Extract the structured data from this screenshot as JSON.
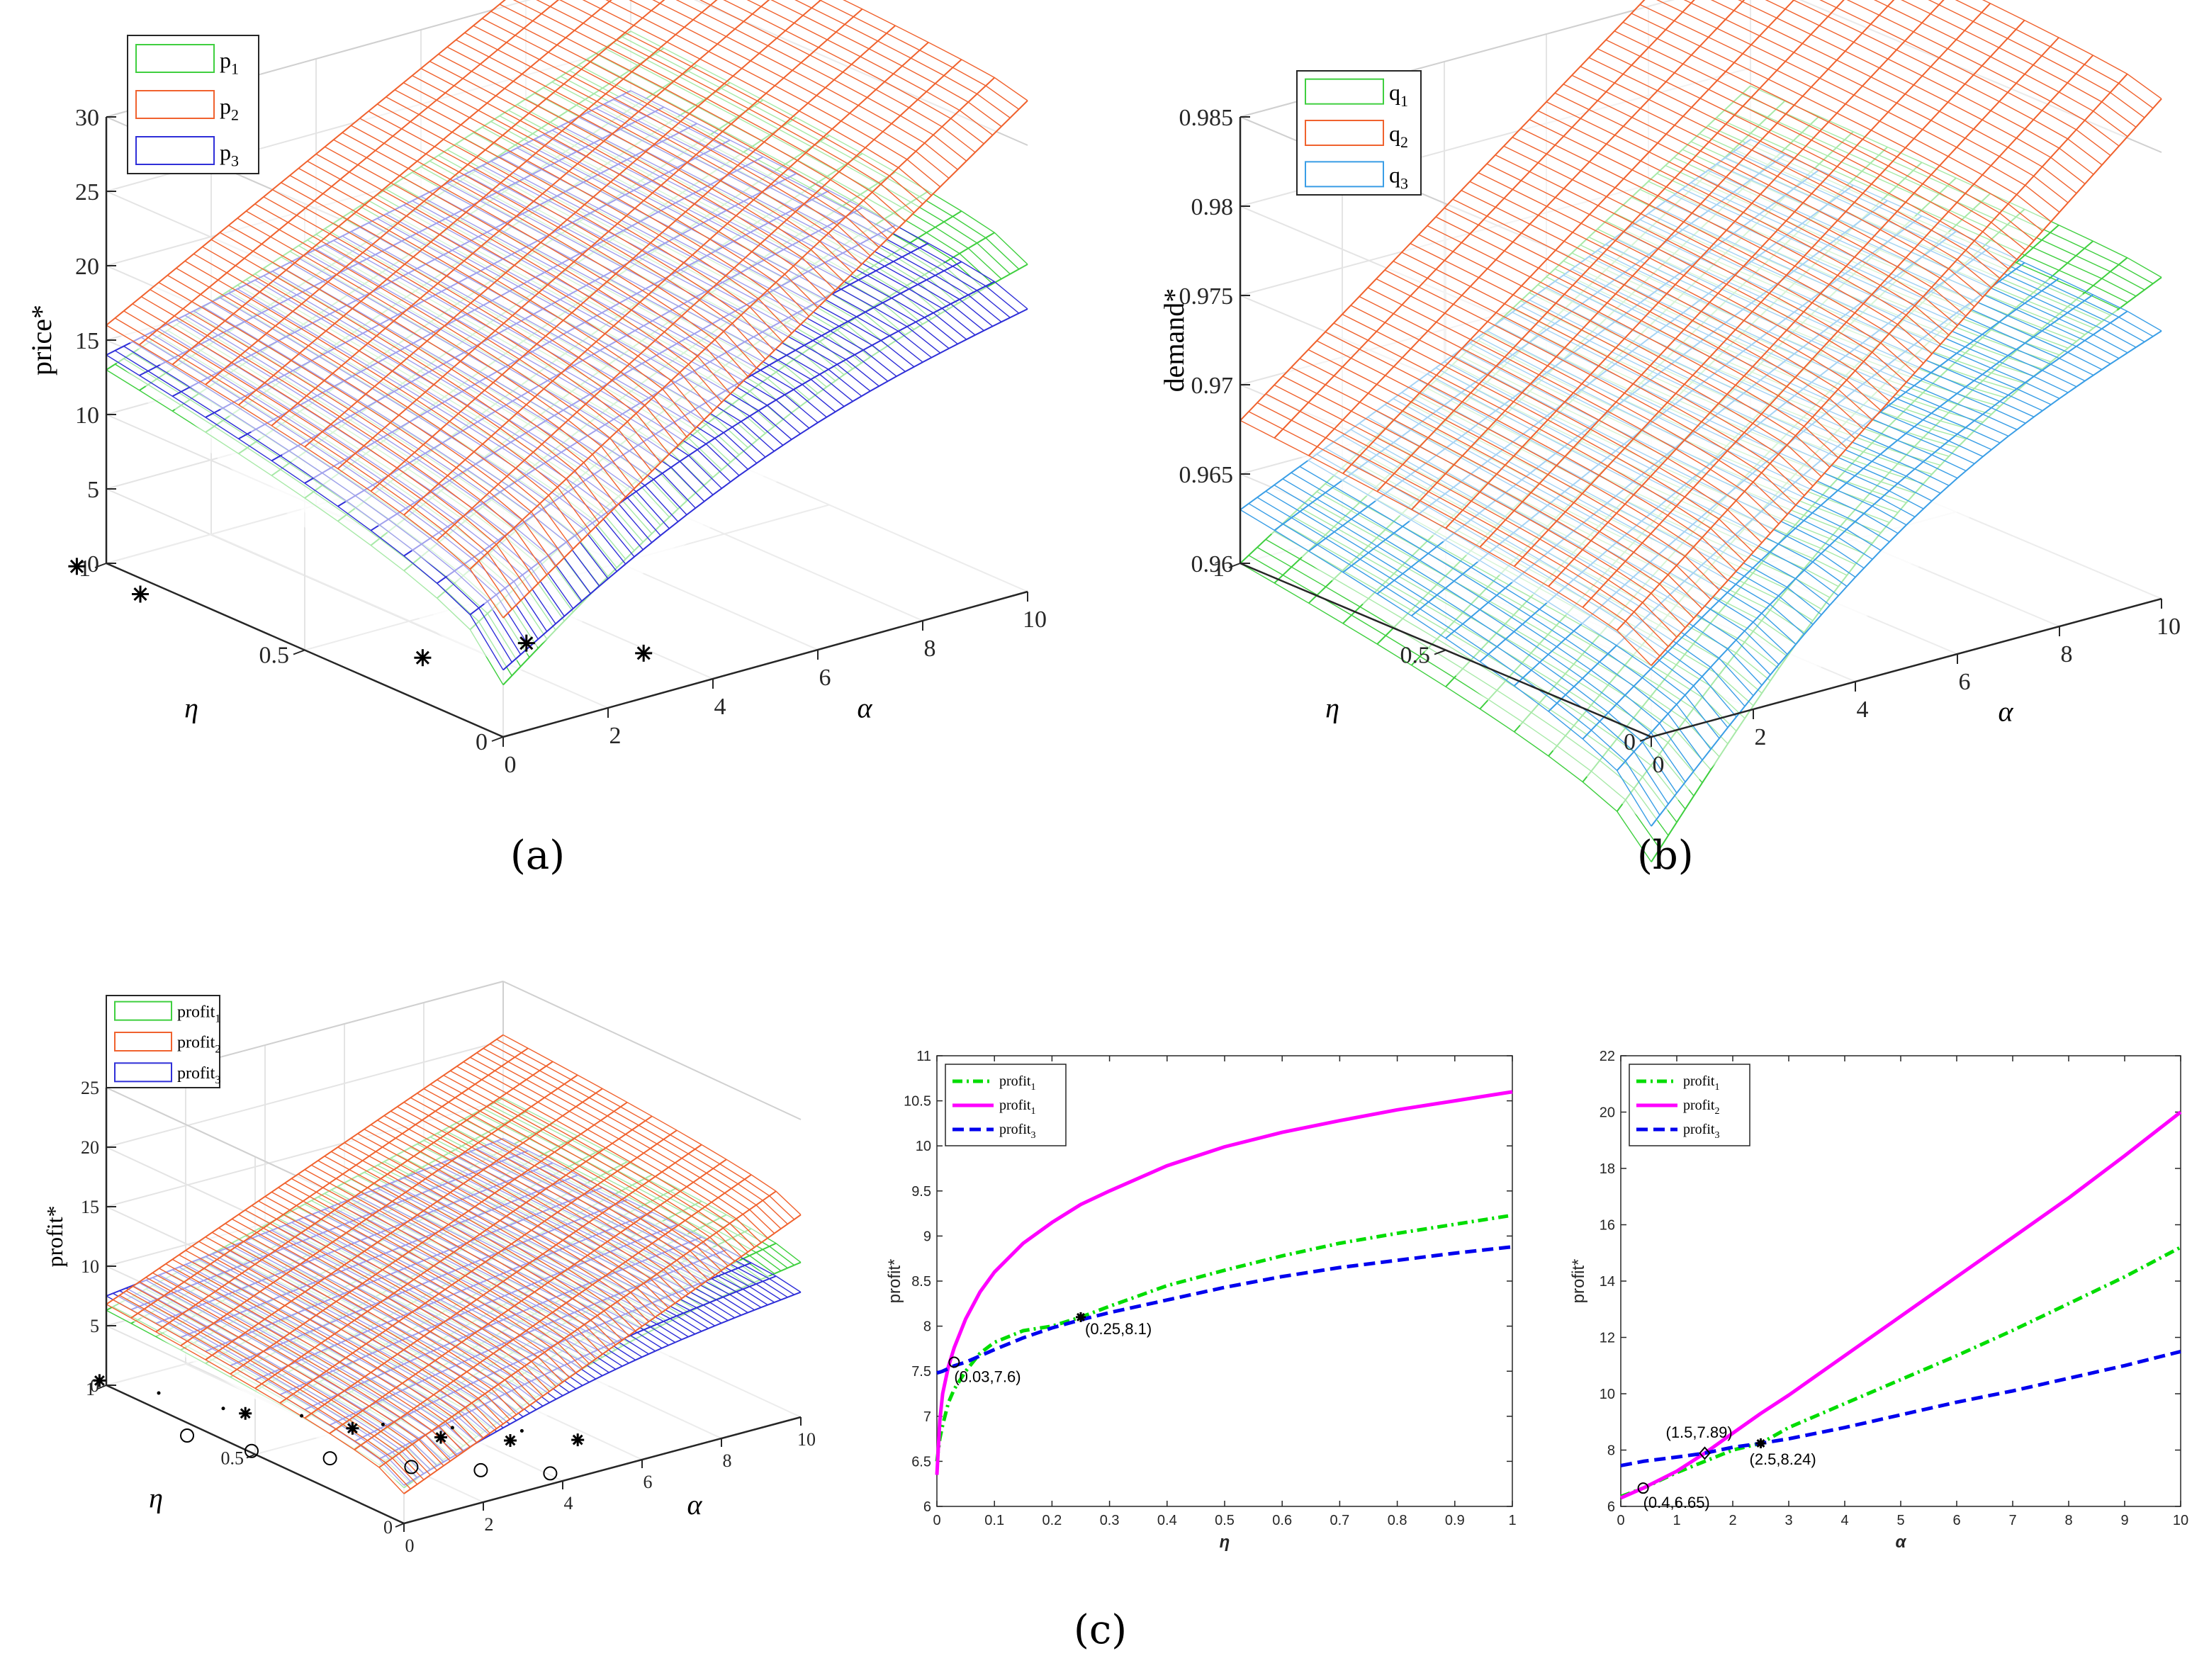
{
  "figure_labels": {
    "a": "(a)",
    "b": "(b)",
    "c": "(c)"
  },
  "colors": {
    "s1": "#3fcf3f",
    "s2": "#f0622e",
    "s3": "#2f2fd8",
    "s3b": "#3a9ee6",
    "profit1": "#00dd00",
    "profit2": "#ff00ff",
    "profit3": "#0000ee"
  },
  "chart_data": [
    {
      "type": "surface3d",
      "panel": "a",
      "ylabel": "price*",
      "xlabel": "α",
      "depth_label": "η",
      "zlim": [
        0,
        30
      ],
      "zticks": [
        "0",
        "5",
        "10",
        "15",
        "20",
        "25",
        "30"
      ],
      "alpha_ticks": [
        "0",
        "2",
        "4",
        "6",
        "8",
        "10"
      ],
      "eta_ticks": [
        "0",
        "0.5",
        "1"
      ],
      "legend": [
        "p",
        "p",
        "p"
      ],
      "legend_sub": [
        "1",
        "2",
        "3"
      ],
      "series": [
        {
          "name": "p1",
          "corners": {
            "a0e0": 3.5,
            "a10e0": 22,
            "a0e1": 13,
            "a10e1": 26
          }
        },
        {
          "name": "p2",
          "corners": {
            "a0e0": 8,
            "a10e0": 33,
            "a0e1": 16,
            "a10e1": 35
          }
        },
        {
          "name": "p3",
          "corners": {
            "a0e0": 4.5,
            "a10e0": 19,
            "a0e1": 14,
            "a10e1": 22
          }
        }
      ],
      "markers": "asterisks"
    },
    {
      "type": "surface3d",
      "panel": "b",
      "ylabel": "demand*",
      "xlabel": "α",
      "depth_label": "η",
      "zlim": [
        0.96,
        0.985
      ],
      "zticks": [
        "0.96",
        "0.965",
        "0.97",
        "0.975",
        "0.98",
        "0.985"
      ],
      "alpha_ticks": [
        "0",
        "2",
        "4",
        "6",
        "8",
        "10"
      ],
      "eta_ticks": [
        "0",
        "0.5",
        "1"
      ],
      "legend": [
        "q",
        "q",
        "q"
      ],
      "legend_sub": [
        "1",
        "2",
        "3"
      ],
      "series": [
        {
          "name": "q1",
          "corners": {
            "a0e0": 0.953,
            "a10e0": 0.978,
            "a0e1": 0.96,
            "a10e1": 0.979
          }
        },
        {
          "name": "q2",
          "corners": {
            "a0e0": 0.964,
            "a10e0": 0.988,
            "a0e1": 0.968,
            "a10e1": 0.99
          }
        },
        {
          "name": "q3",
          "corners": {
            "a0e0": 0.955,
            "a10e0": 0.975,
            "a0e1": 0.963,
            "a10e1": 0.976
          }
        }
      ]
    },
    {
      "type": "surface3d",
      "panel": "c-left",
      "ylabel": "profit*",
      "xlabel": "α",
      "depth_label": "η",
      "zlim": [
        0,
        25
      ],
      "zticks": [
        "0",
        "5",
        "10",
        "15",
        "20",
        "25"
      ],
      "alpha_ticks": [
        "0",
        "2",
        "4",
        "6",
        "8",
        "10"
      ],
      "eta_ticks": [
        "0",
        "0.5",
        "1"
      ],
      "legend": [
        "profit",
        "profit",
        "profit"
      ],
      "legend_sub": [
        "1",
        "2",
        "3"
      ],
      "series": [
        {
          "name": "profit1",
          "corners": {
            "a0e0": 3,
            "a10e0": 13,
            "a0e1": 6.3,
            "a10e1": 15.2
          }
        },
        {
          "name": "profit2",
          "corners": {
            "a0e0": 2.5,
            "a10e0": 17,
            "a0e1": 6.8,
            "a10e1": 20.5
          }
        },
        {
          "name": "profit3",
          "corners": {
            "a0e0": 3.2,
            "a10e0": 10.5,
            "a0e1": 7.5,
            "a10e1": 11.8
          }
        }
      ],
      "markers": "asterisks-circles"
    },
    {
      "type": "line",
      "panel": "c-middle",
      "xlabel": "η",
      "ylabel": "profit*",
      "xlim": [
        0,
        1
      ],
      "ylim": [
        6,
        11
      ],
      "xticks": [
        "0",
        "0.1",
        "0.2",
        "0.3",
        "0.4",
        "0.5",
        "0.6",
        "0.7",
        "0.8",
        "0.9",
        "1"
      ],
      "yticks": [
        "6",
        "6.5",
        "7",
        "7.5",
        "8",
        "8.5",
        "9",
        "9.5",
        "10",
        "10.5",
        "11"
      ],
      "legend": [
        "profit",
        "profit",
        "profit"
      ],
      "legend_sub": [
        "1",
        "1",
        "3"
      ],
      "x": [
        0,
        0.005,
        0.01,
        0.02,
        0.03,
        0.05,
        0.075,
        0.1,
        0.15,
        0.2,
        0.25,
        0.3,
        0.4,
        0.5,
        0.6,
        0.7,
        0.8,
        0.9,
        1.0
      ],
      "series": [
        {
          "style": "dashdot",
          "values": [
            6.5,
            6.75,
            6.9,
            7.15,
            7.3,
            7.5,
            7.7,
            7.82,
            7.95,
            8.0,
            8.1,
            8.22,
            8.45,
            8.62,
            8.78,
            8.92,
            9.03,
            9.13,
            9.23
          ]
        },
        {
          "style": "solid",
          "values": [
            6.35,
            6.95,
            7.25,
            7.55,
            7.76,
            8.08,
            8.38,
            8.6,
            8.92,
            9.15,
            9.35,
            9.5,
            9.78,
            9.99,
            10.15,
            10.28,
            10.4,
            10.5,
            10.6
          ]
        },
        {
          "style": "dashed",
          "values": [
            7.48,
            7.49,
            7.5,
            7.53,
            7.56,
            7.6,
            7.67,
            7.74,
            7.87,
            7.98,
            8.07,
            8.15,
            8.29,
            8.43,
            8.55,
            8.65,
            8.73,
            8.81,
            8.88
          ]
        }
      ],
      "annotations": [
        {
          "text": "(0.03,7.6)",
          "x": 0.03,
          "y": 7.6,
          "marker": "circle"
        },
        {
          "text": "(0.25,8.1)",
          "x": 0.25,
          "y": 8.1,
          "marker": "asterisk"
        }
      ]
    },
    {
      "type": "line",
      "panel": "c-right",
      "xlabel": "α",
      "ylabel": "profit*",
      "xlim": [
        0,
        10
      ],
      "ylim": [
        6,
        22
      ],
      "xticks": [
        "0",
        "1",
        "2",
        "3",
        "4",
        "5",
        "6",
        "7",
        "8",
        "9",
        "10"
      ],
      "yticks": [
        "6",
        "8",
        "10",
        "12",
        "14",
        "16",
        "18",
        "20",
        "22"
      ],
      "legend": [
        "profit",
        "profit",
        "profit"
      ],
      "legend_sub": [
        "1",
        "2",
        "3"
      ],
      "x": [
        0,
        0.4,
        1,
        1.5,
        2,
        2.5,
        3,
        4,
        5,
        6,
        7,
        8,
        9,
        10
      ],
      "series": [
        {
          "style": "dashdot",
          "values": [
            6.35,
            6.65,
            7.2,
            7.6,
            8.0,
            8.24,
            8.8,
            9.65,
            10.5,
            11.35,
            12.25,
            13.2,
            14.15,
            15.2
          ]
        },
        {
          "style": "solid",
          "values": [
            6.3,
            6.65,
            7.25,
            7.89,
            8.6,
            9.3,
            9.95,
            11.35,
            12.75,
            14.15,
            15.55,
            16.95,
            18.45,
            20.0
          ]
        },
        {
          "style": "dashed",
          "values": [
            7.45,
            7.6,
            7.75,
            7.89,
            8.1,
            8.24,
            8.4,
            8.8,
            9.25,
            9.7,
            10.1,
            10.55,
            11.0,
            11.5
          ]
        }
      ],
      "annotations": [
        {
          "text": "(0.4,6.65)",
          "x": 0.4,
          "y": 6.65,
          "marker": "circle"
        },
        {
          "text": "(1.5,7.89)",
          "x": 1.5,
          "y": 7.89,
          "marker": "diamond"
        },
        {
          "text": "(2.5,8.24)",
          "x": 2.5,
          "y": 8.24,
          "marker": "asterisk"
        }
      ]
    }
  ]
}
